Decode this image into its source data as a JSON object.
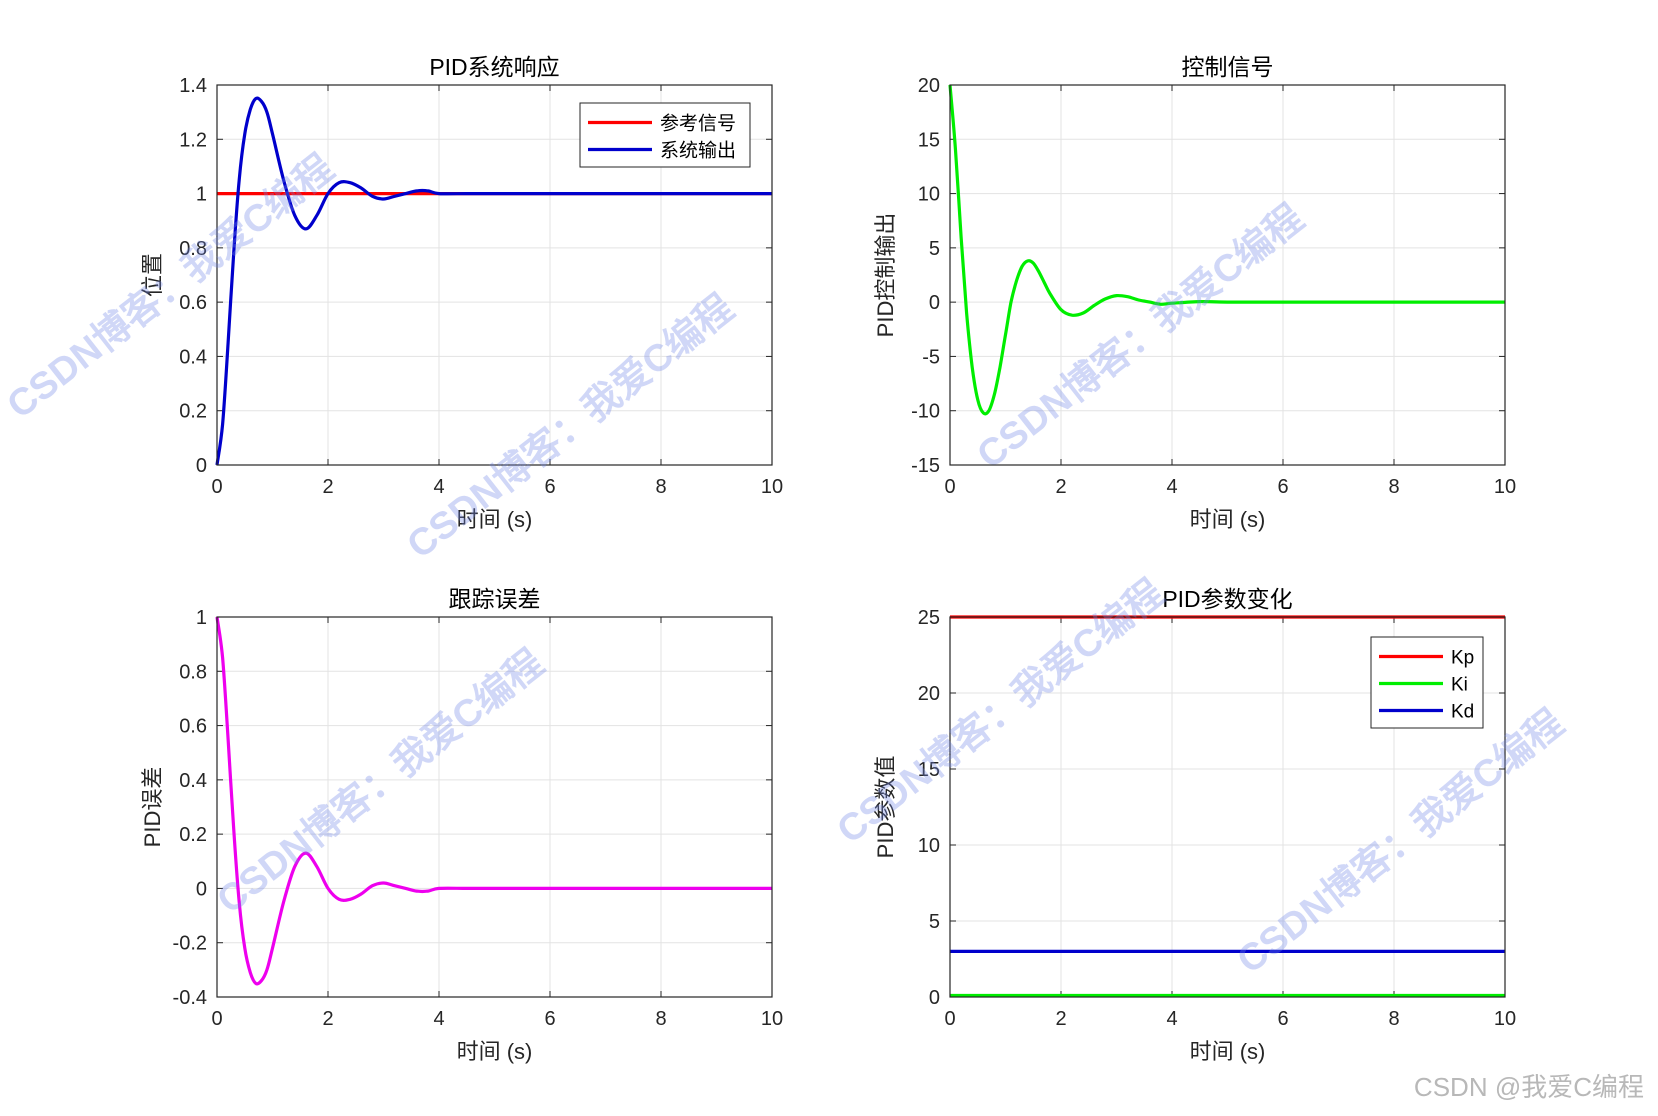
{
  "watermark_text": "CSDN博客：我爱C编程",
  "credit": "CSDN @我爱C编程",
  "chart_data": [
    {
      "type": "line",
      "title": "PID系统响应",
      "xlabel": "时间 (s)",
      "ylabel": "位置",
      "xlim": [
        0,
        10
      ],
      "ylim": [
        0,
        1.4
      ],
      "xticks": [
        0,
        2,
        4,
        6,
        8,
        10
      ],
      "yticks": [
        0,
        0.2,
        0.4,
        0.6,
        0.8,
        1,
        1.2,
        1.4
      ],
      "grid": true,
      "legend": "top-right",
      "x": [
        0,
        0.1,
        0.2,
        0.3,
        0.4,
        0.5,
        0.6,
        0.7,
        0.8,
        0.9,
        1.0,
        1.2,
        1.4,
        1.6,
        1.8,
        2.0,
        2.2,
        2.4,
        2.6,
        2.8,
        3.0,
        3.2,
        3.4,
        3.6,
        3.8,
        4.0,
        4.5,
        5.0,
        6.0,
        7.0,
        8.0,
        9.0,
        10.0
      ],
      "series": [
        {
          "name": "参考信号",
          "color": "#ff0000",
          "values": [
            1,
            1,
            1,
            1,
            1,
            1,
            1,
            1,
            1,
            1,
            1,
            1,
            1,
            1,
            1,
            1,
            1,
            1,
            1,
            1,
            1,
            1,
            1,
            1,
            1,
            1,
            1,
            1,
            1,
            1,
            1,
            1,
            1
          ]
        },
        {
          "name": "系统输出",
          "color": "#0000cc",
          "values": [
            0,
            0.15,
            0.45,
            0.78,
            1.05,
            1.22,
            1.31,
            1.35,
            1.34,
            1.3,
            1.22,
            1.05,
            0.92,
            0.87,
            0.92,
            1.0,
            1.04,
            1.04,
            1.02,
            0.99,
            0.98,
            0.99,
            1.0,
            1.01,
            1.01,
            1.0,
            1.0,
            1.0,
            1.0,
            1.0,
            1.0,
            1.0,
            1.0
          ]
        }
      ]
    },
    {
      "type": "line",
      "title": "控制信号",
      "xlabel": "时间 (s)",
      "ylabel": "PID控制输出",
      "xlim": [
        0,
        10
      ],
      "ylim": [
        -15,
        20
      ],
      "xticks": [
        0,
        2,
        4,
        6,
        8,
        10
      ],
      "yticks": [
        -15,
        -10,
        -5,
        0,
        5,
        10,
        15,
        20
      ],
      "grid": true,
      "x": [
        0,
        0.1,
        0.2,
        0.3,
        0.4,
        0.5,
        0.6,
        0.7,
        0.8,
        0.9,
        1.0,
        1.1,
        1.2,
        1.3,
        1.4,
        1.5,
        1.6,
        1.7,
        1.8,
        2.0,
        2.2,
        2.4,
        2.6,
        2.8,
        3.0,
        3.2,
        3.4,
        3.6,
        3.8,
        4.0,
        4.5,
        5.0,
        6.0,
        7.0,
        8.0,
        9.0,
        10.0
      ],
      "series": [
        {
          "name": "",
          "color": "#00ee00",
          "values": [
            20,
            14,
            6,
            -1,
            -6,
            -9,
            -10.2,
            -10,
            -8.5,
            -6,
            -3,
            0,
            2,
            3.3,
            3.8,
            3.6,
            2.8,
            1.8,
            0.8,
            -0.7,
            -1.2,
            -1.0,
            -0.3,
            0.3,
            0.6,
            0.5,
            0.2,
            0,
            -0.2,
            -0.1,
            0.05,
            0,
            0,
            0,
            0,
            0,
            0
          ]
        }
      ]
    },
    {
      "type": "line",
      "title": "跟踪误差",
      "xlabel": "时间 (s)",
      "ylabel": "PID误差",
      "xlim": [
        0,
        10
      ],
      "ylim": [
        -0.4,
        1
      ],
      "xticks": [
        0,
        2,
        4,
        6,
        8,
        10
      ],
      "yticks": [
        -0.4,
        -0.2,
        0,
        0.2,
        0.4,
        0.6,
        0.8,
        1
      ],
      "grid": true,
      "x": [
        0,
        0.1,
        0.2,
        0.3,
        0.4,
        0.5,
        0.6,
        0.7,
        0.8,
        0.9,
        1.0,
        1.2,
        1.4,
        1.6,
        1.8,
        2.0,
        2.2,
        2.4,
        2.6,
        2.8,
        3.0,
        3.2,
        3.4,
        3.6,
        3.8,
        4.0,
        4.5,
        5.0,
        6.0,
        7.0,
        8.0,
        9.0,
        10.0
      ],
      "series": [
        {
          "name": "",
          "color": "#ee00ee",
          "values": [
            1,
            0.85,
            0.55,
            0.22,
            -0.05,
            -0.22,
            -0.31,
            -0.35,
            -0.34,
            -0.3,
            -0.22,
            -0.05,
            0.08,
            0.13,
            0.08,
            0,
            -0.04,
            -0.04,
            -0.02,
            0.01,
            0.02,
            0.01,
            0,
            -0.01,
            -0.01,
            0,
            0,
            0,
            0,
            0,
            0,
            0,
            0
          ]
        }
      ]
    },
    {
      "type": "line",
      "title": "PID参数变化",
      "xlabel": "时间 (s)",
      "ylabel": "PID参数值",
      "xlim": [
        0,
        10
      ],
      "ylim": [
        0,
        25
      ],
      "xticks": [
        0,
        2,
        4,
        6,
        8,
        10
      ],
      "yticks": [
        0,
        5,
        10,
        15,
        20,
        25
      ],
      "grid": true,
      "legend": "top-right",
      "x": [
        0,
        10
      ],
      "series": [
        {
          "name": "Kp",
          "color": "#ff0000",
          "values": [
            25,
            25
          ]
        },
        {
          "name": "Ki",
          "color": "#00ee00",
          "values": [
            0.1,
            0.1
          ]
        },
        {
          "name": "Kd",
          "color": "#0000cc",
          "values": [
            3,
            3
          ]
        }
      ]
    }
  ]
}
